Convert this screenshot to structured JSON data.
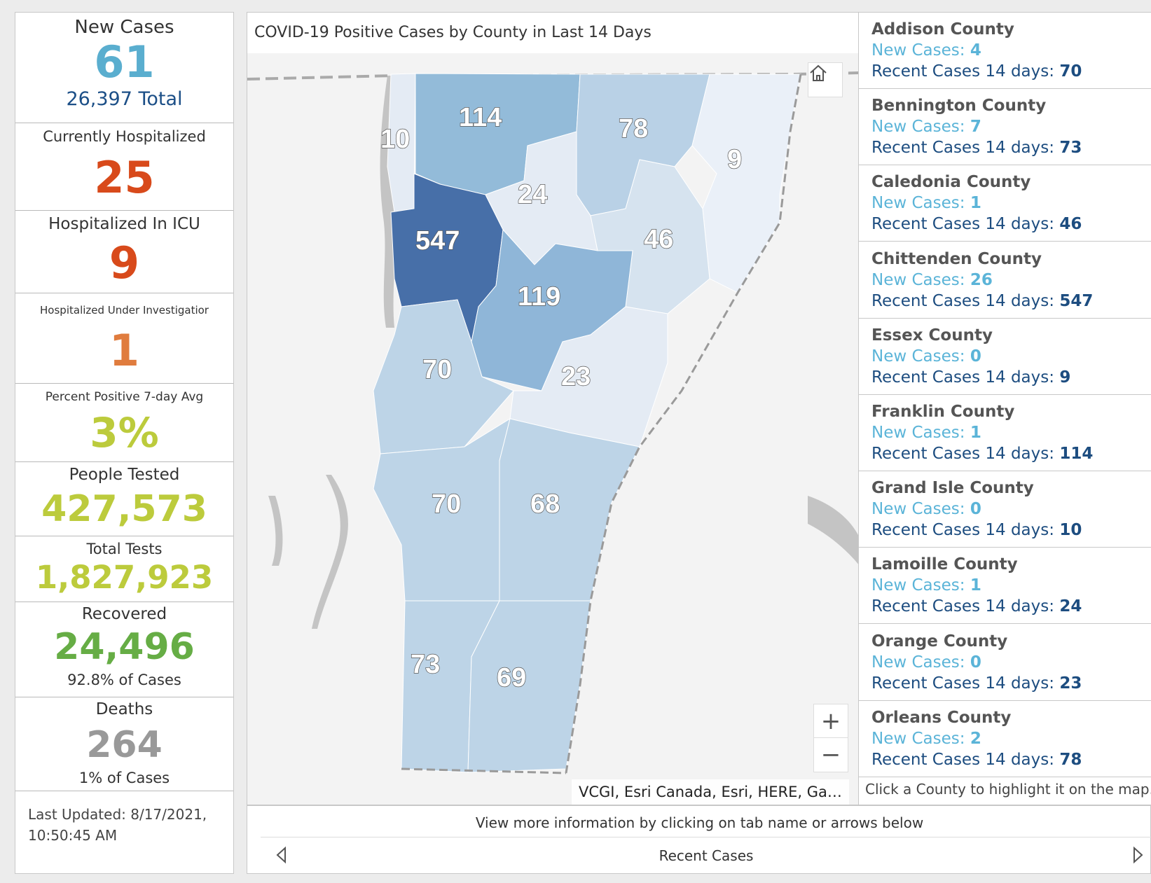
{
  "stats": {
    "new_cases": {
      "label": "New Cases",
      "value": "61",
      "sub": "26,397 Total"
    },
    "hospitalized": {
      "label": "Currently Hospitalized",
      "value": "25"
    },
    "icu": {
      "label": "Hospitalized In ICU",
      "value": "9"
    },
    "under_investigation": {
      "label": "Hospitalized Under Investigatior",
      "value": "1"
    },
    "percent_positive": {
      "label": "Percent Positive 7-day Avg",
      "value": "3%"
    },
    "people_tested": {
      "label": "People Tested",
      "value": "427,573"
    },
    "total_tests": {
      "label": "Total Tests",
      "value": "1,827,923"
    },
    "recovered": {
      "label": "Recovered",
      "value": "24,496",
      "sub": "92.8% of Cases"
    },
    "deaths": {
      "label": "Deaths",
      "value": "264",
      "sub": "1% of Cases"
    },
    "last_updated": {
      "line1": "Last Updated: 8/17/2021,",
      "line2": "10:50:45 AM"
    }
  },
  "colors": {
    "new_cases": "#5aaecf",
    "total": "#1c4f87",
    "hospitalized": "#d84a1b",
    "investigation": "#e07c3e",
    "tested": "#bccb3c",
    "recovered": "#66ad45",
    "deaths": "#999999"
  },
  "map": {
    "title": "COVID-19 Positive Cases by County in Last 14 Days",
    "attribution": "VCGI, Esri Canada, Esri, HERE, Ga…",
    "home_icon": "home-icon",
    "zoom_in": "+",
    "zoom_out": "−",
    "labels": {
      "franklin": "114",
      "orleans": "78",
      "essex": "9",
      "grand_isle": "10",
      "lamoille": "24",
      "chittenden": "547",
      "caledonia": "46",
      "washington": "119",
      "addison": "70",
      "orange": "23",
      "rutland": "70",
      "windsor": "68",
      "bennington": "73",
      "windham": "69"
    }
  },
  "counties": {
    "new_cases_label": "New Cases:",
    "recent_label": "Recent Cases 14 days:",
    "items": [
      {
        "name": "Addison County",
        "new": "4",
        "recent": "70"
      },
      {
        "name": "Bennington County",
        "new": "7",
        "recent": "73"
      },
      {
        "name": "Caledonia County",
        "new": "1",
        "recent": "46"
      },
      {
        "name": "Chittenden County",
        "new": "26",
        "recent": "547"
      },
      {
        "name": "Essex County",
        "new": "0",
        "recent": "9"
      },
      {
        "name": "Franklin County",
        "new": "1",
        "recent": "114"
      },
      {
        "name": "Grand Isle County",
        "new": "0",
        "recent": "10"
      },
      {
        "name": "Lamoille County",
        "new": "1",
        "recent": "24"
      },
      {
        "name": "Orange County",
        "new": "0",
        "recent": "23"
      },
      {
        "name": "Orleans County",
        "new": "2",
        "recent": "78"
      }
    ],
    "hint": "Click a County to highlight it on the map."
  },
  "tabs": {
    "info": "View more information by clicking on tab name or arrows below",
    "active": "Recent Cases"
  }
}
